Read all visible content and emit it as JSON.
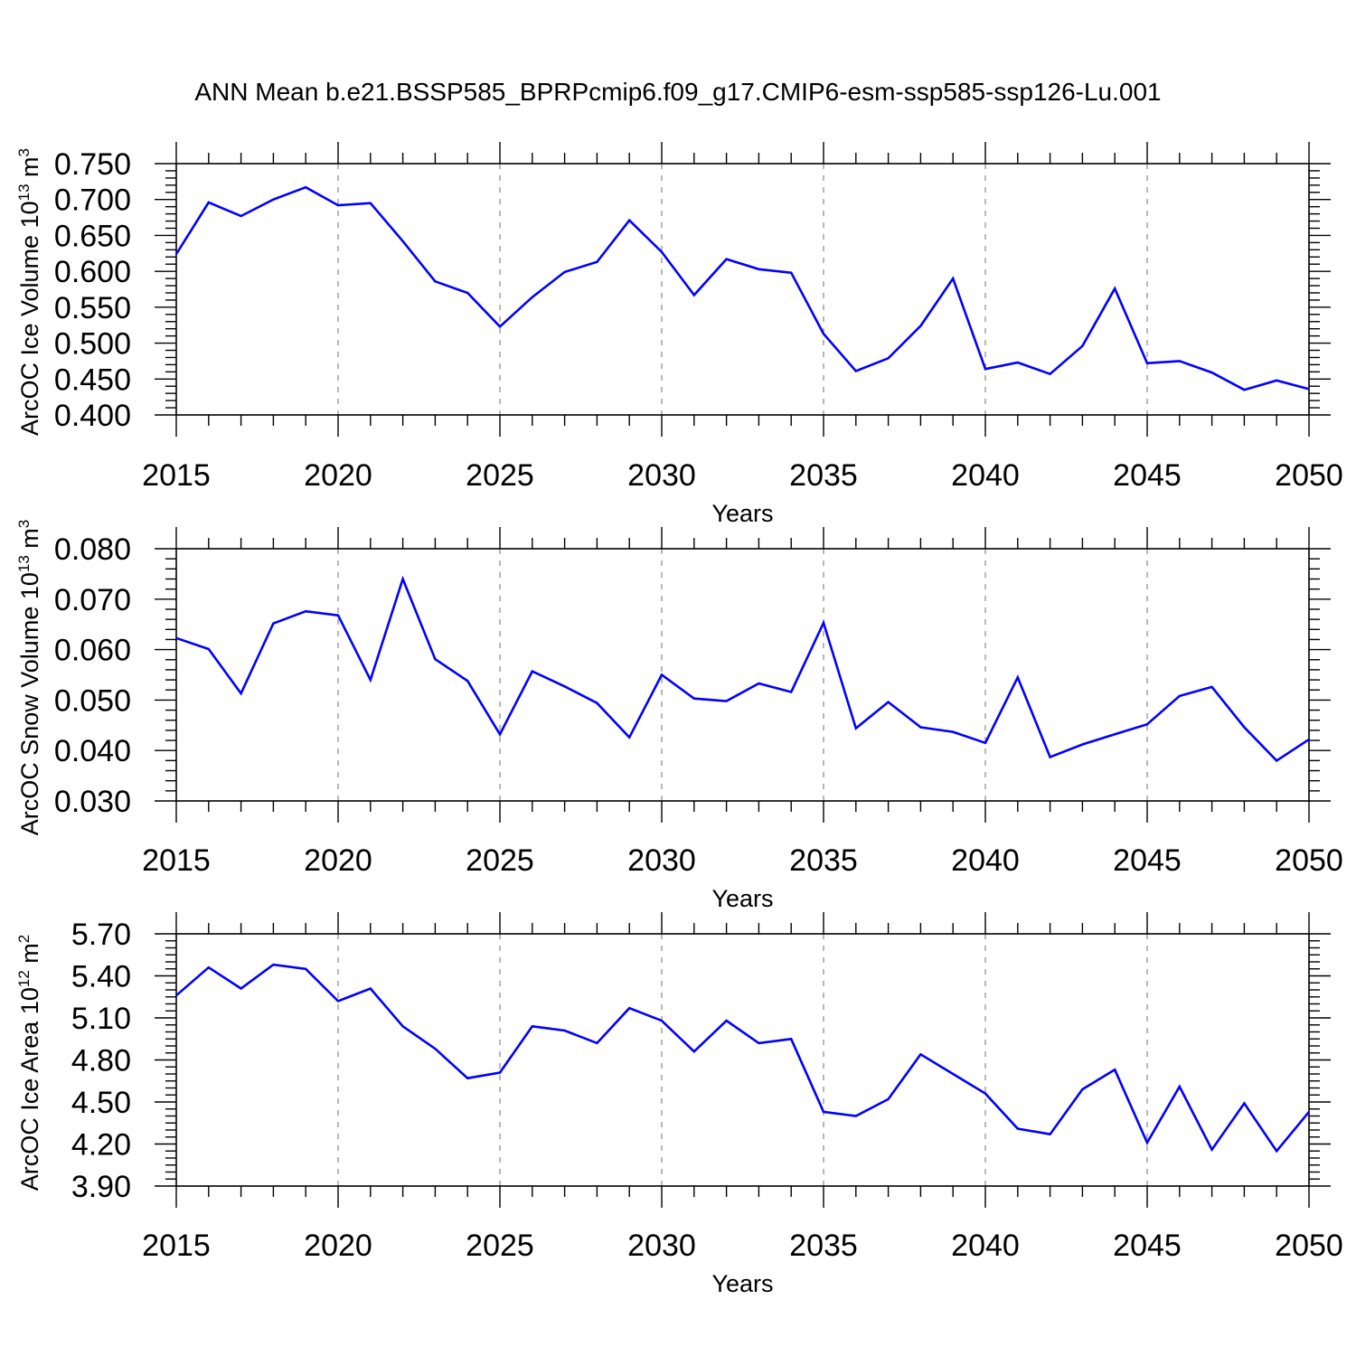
{
  "title": "ANN Mean b.e21.BSSP585_BPRPcmip6.f09_g17.CMIP6-esm-ssp585-ssp126-Lu.001",
  "chart_data": [
    {
      "type": "line",
      "xlabel": "Years",
      "ylabel": {
        "text": "ArcOC Ice Volume 10",
        "exp": "13",
        "unit": " m",
        "unit_exp": "3"
      },
      "xlim": [
        2015,
        2050
      ],
      "ylim": [
        0.4,
        0.75
      ],
      "xticks": [
        "2015",
        "2020",
        "2025",
        "2030",
        "2035",
        "2040",
        "2045",
        "2050"
      ],
      "yticks": [
        "0.400",
        "0.450",
        "0.500",
        "0.550",
        "0.600",
        "0.650",
        "0.700",
        "0.750"
      ],
      "grid": "dashed vertical at major x ticks",
      "series": [
        {
          "color": "#0000ff",
          "x": [
            2015,
            2016,
            2017,
            2018,
            2019,
            2020,
            2021,
            2022,
            2023,
            2024,
            2025,
            2026,
            2027,
            2028,
            2029,
            2030,
            2031,
            2032,
            2033,
            2034,
            2035,
            2036,
            2037,
            2038,
            2039,
            2040,
            2041,
            2042,
            2043,
            2044,
            2045,
            2046,
            2047,
            2048,
            2049,
            2050
          ],
          "y": [
            0.624,
            0.696,
            0.677,
            0.7,
            0.717,
            0.692,
            0.695,
            0.642,
            0.586,
            0.57,
            0.523,
            0.564,
            0.599,
            0.613,
            0.671,
            0.627,
            0.567,
            0.617,
            0.603,
            0.598,
            0.513,
            0.461,
            0.479,
            0.524,
            0.59,
            0.464,
            0.473,
            0.457,
            0.496,
            0.576,
            0.472,
            0.475,
            0.459,
            0.435,
            0.448,
            0.436
          ]
        }
      ]
    },
    {
      "type": "line",
      "xlabel": "Years",
      "ylabel": {
        "text": "ArcOC Snow Volume 10",
        "exp": "13",
        "unit": " m",
        "unit_exp": "3"
      },
      "xlim": [
        2015,
        2050
      ],
      "ylim": [
        0.03,
        0.08
      ],
      "xticks": [
        "2015",
        "2020",
        "2025",
        "2030",
        "2035",
        "2040",
        "2045",
        "2050"
      ],
      "yticks": [
        "0.030",
        "0.040",
        "0.050",
        "0.060",
        "0.070",
        "0.080"
      ],
      "grid": "dashed vertical at major x ticks",
      "series": [
        {
          "color": "#0000ff",
          "x": [
            2015,
            2016,
            2017,
            2018,
            2019,
            2020,
            2021,
            2022,
            2023,
            2024,
            2025,
            2026,
            2027,
            2028,
            2029,
            2030,
            2031,
            2032,
            2033,
            2034,
            2035,
            2036,
            2037,
            2038,
            2039,
            2040,
            2041,
            2042,
            2043,
            2044,
            2045,
            2046,
            2047,
            2048,
            2049,
            2050
          ],
          "y": [
            0.0623,
            0.0601,
            0.0513,
            0.0652,
            0.0676,
            0.0668,
            0.054,
            0.074,
            0.0581,
            0.0538,
            0.0432,
            0.0557,
            0.0527,
            0.0494,
            0.0426,
            0.055,
            0.0503,
            0.0498,
            0.0533,
            0.0516,
            0.0653,
            0.0444,
            0.0496,
            0.0446,
            0.0437,
            0.0415,
            0.0545,
            0.0387,
            0.0412,
            0.0432,
            0.0452,
            0.0508,
            0.0526,
            0.0446,
            0.038,
            0.0422
          ]
        }
      ]
    },
    {
      "type": "line",
      "xlabel": "Years",
      "ylabel": {
        "text": "ArcOC Ice Area 10",
        "exp": "12",
        "unit": " m",
        "unit_exp": "2"
      },
      "xlim": [
        2015,
        2050
      ],
      "ylim": [
        3.9,
        5.7
      ],
      "xticks": [
        "2015",
        "2020",
        "2025",
        "2030",
        "2035",
        "2040",
        "2045",
        "2050"
      ],
      "yticks": [
        "3.90",
        "4.20",
        "4.50",
        "4.80",
        "5.10",
        "5.40",
        "5.70"
      ],
      "grid": "dashed vertical at major x ticks",
      "series": [
        {
          "color": "#0000ff",
          "x": [
            2015,
            2016,
            2017,
            2018,
            2019,
            2020,
            2021,
            2022,
            2023,
            2024,
            2025,
            2026,
            2027,
            2028,
            2029,
            2030,
            2031,
            2032,
            2033,
            2034,
            2035,
            2036,
            2037,
            2038,
            2039,
            2040,
            2041,
            2042,
            2043,
            2044,
            2045,
            2046,
            2047,
            2048,
            2049,
            2050
          ],
          "y": [
            5.26,
            5.46,
            5.31,
            5.48,
            5.45,
            5.22,
            5.31,
            5.04,
            4.88,
            4.67,
            4.71,
            5.04,
            5.01,
            4.92,
            5.17,
            5.08,
            4.86,
            5.08,
            4.92,
            4.95,
            4.43,
            4.4,
            4.52,
            4.84,
            4.7,
            4.56,
            4.31,
            4.27,
            4.59,
            4.73,
            4.21,
            4.61,
            4.16,
            4.49,
            4.15,
            4.43
          ]
        }
      ]
    }
  ]
}
